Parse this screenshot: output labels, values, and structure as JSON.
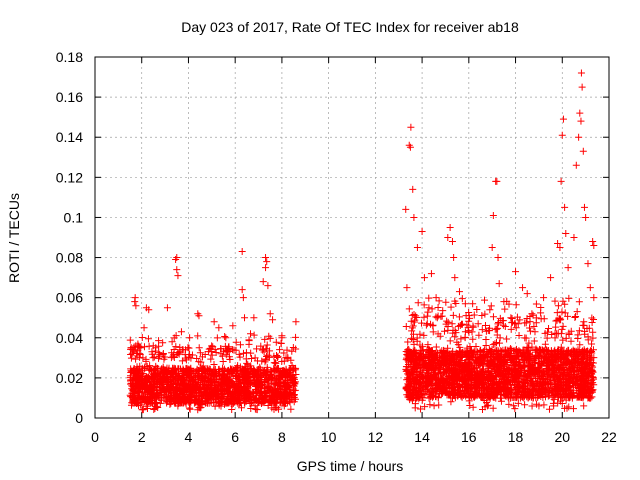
{
  "chart_data": {
    "type": "scatter",
    "title": "Day 023 of 2017, Rate Of TEC Index for receiver ab18",
    "xlabel": "GPS time / hours",
    "ylabel": "ROTI / TECUs",
    "xlim": [
      0,
      22
    ],
    "ylim": [
      0,
      0.18
    ],
    "x_ticks": [
      "0",
      "2",
      "4",
      "6",
      "8",
      "10",
      "12",
      "14",
      "16",
      "18",
      "20",
      "22"
    ],
    "y_ticks": [
      "0",
      "0.02",
      "0.04",
      "0.06",
      "0.08",
      "0.1",
      "0.12",
      "0.14",
      "0.16",
      "0.18"
    ],
    "grid": true,
    "marker": "+",
    "color": "#ff0000",
    "series": [
      {
        "name": "ROTI",
        "points": [
          [
            1.55,
            0.035
          ],
          [
            1.6,
            0.034
          ],
          [
            1.65,
            0.033
          ],
          [
            1.7,
            0.058
          ],
          [
            1.72,
            0.06
          ],
          [
            1.75,
            0.056
          ],
          [
            1.8,
            0.031
          ],
          [
            2.05,
            0.03
          ],
          [
            2.1,
            0.045
          ],
          [
            2.2,
            0.055
          ],
          [
            2.3,
            0.054
          ],
          [
            2.6,
            0.035
          ],
          [
            3.1,
            0.055
          ],
          [
            3.3,
            0.038
          ],
          [
            3.45,
            0.079
          ],
          [
            3.5,
            0.08
          ],
          [
            3.5,
            0.074
          ],
          [
            3.55,
            0.071
          ],
          [
            3.7,
            0.043
          ],
          [
            4.05,
            0.04
          ],
          [
            4.4,
            0.052
          ],
          [
            4.45,
            0.051
          ],
          [
            5.1,
            0.048
          ],
          [
            5.3,
            0.045
          ],
          [
            5.6,
            0.04
          ],
          [
            5.9,
            0.046
          ],
          [
            6.3,
            0.083
          ],
          [
            6.3,
            0.064
          ],
          [
            6.35,
            0.06
          ],
          [
            6.4,
            0.05
          ],
          [
            6.8,
            0.05
          ],
          [
            7.2,
            0.068
          ],
          [
            7.3,
            0.08
          ],
          [
            7.35,
            0.078
          ],
          [
            7.3,
            0.075
          ],
          [
            7.4,
            0.066
          ],
          [
            7.5,
            0.052
          ],
          [
            7.6,
            0.049
          ],
          [
            8.0,
            0.04
          ],
          [
            8.6,
            0.048
          ],
          [
            13.3,
            0.104
          ],
          [
            13.35,
            0.065
          ],
          [
            13.45,
            0.136
          ],
          [
            13.5,
            0.135
          ],
          [
            13.52,
            0.145
          ],
          [
            13.6,
            0.114
          ],
          [
            13.65,
            0.1
          ],
          [
            13.8,
            0.085
          ],
          [
            14.0,
            0.093
          ],
          [
            14.1,
            0.07
          ],
          [
            14.4,
            0.072
          ],
          [
            14.6,
            0.06
          ],
          [
            15.1,
            0.09
          ],
          [
            15.2,
            0.095
          ],
          [
            15.3,
            0.088
          ],
          [
            15.35,
            0.08
          ],
          [
            15.4,
            0.07
          ],
          [
            15.6,
            0.063
          ],
          [
            16.4,
            0.047
          ],
          [
            16.9,
            0.054
          ],
          [
            17.0,
            0.085
          ],
          [
            17.05,
            0.101
          ],
          [
            17.15,
            0.118
          ],
          [
            17.2,
            0.118
          ],
          [
            17.25,
            0.08
          ],
          [
            17.3,
            0.067
          ],
          [
            17.5,
            0.058
          ],
          [
            17.8,
            0.05
          ],
          [
            18.0,
            0.073
          ],
          [
            18.3,
            0.065
          ],
          [
            18.5,
            0.062
          ],
          [
            18.7,
            0.052
          ],
          [
            19.2,
            0.06
          ],
          [
            19.5,
            0.07
          ],
          [
            19.8,
            0.087
          ],
          [
            19.9,
            0.085
          ],
          [
            19.95,
            0.118
          ],
          [
            20.0,
            0.141
          ],
          [
            20.05,
            0.149
          ],
          [
            20.1,
            0.105
          ],
          [
            20.15,
            0.092
          ],
          [
            20.25,
            0.075
          ],
          [
            20.5,
            0.09
          ],
          [
            20.6,
            0.126
          ],
          [
            20.7,
            0.14
          ],
          [
            20.75,
            0.152
          ],
          [
            20.8,
            0.148
          ],
          [
            20.82,
            0.172
          ],
          [
            20.85,
            0.165
          ],
          [
            20.9,
            0.133
          ],
          [
            20.95,
            0.105
          ],
          [
            21.0,
            0.1
          ],
          [
            21.1,
            0.077
          ],
          [
            21.2,
            0.065
          ],
          [
            21.3,
            0.088
          ],
          [
            21.35,
            0.086
          ],
          [
            21.35,
            0.06
          ]
        ],
        "dense_clusters": [
          {
            "x_range": [
              1.5,
              8.6
            ],
            "y_range": [
              0.004,
              0.042
            ],
            "count": 1900,
            "mean_y": 0.016
          },
          {
            "x_range": [
              13.3,
              21.35
            ],
            "y_range": [
              0.004,
              0.06
            ],
            "count": 2700,
            "mean_y": 0.022
          }
        ]
      }
    ]
  }
}
